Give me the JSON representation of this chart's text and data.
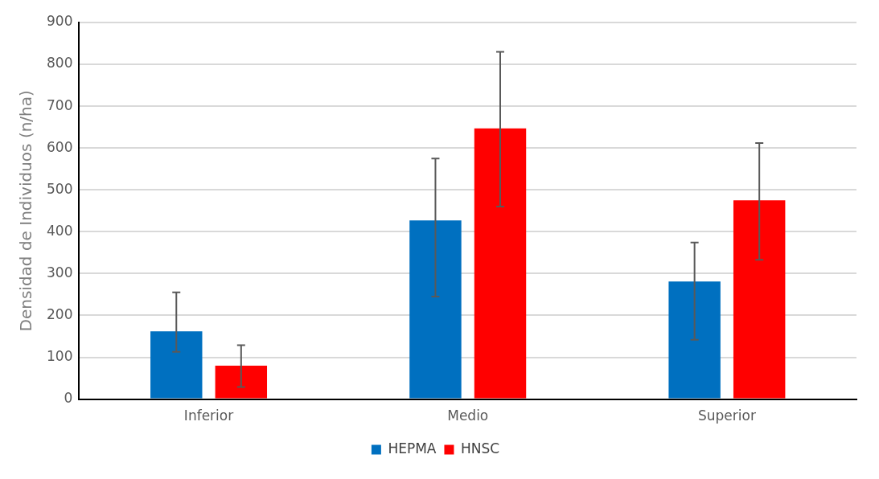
{
  "chart_data": {
    "type": "bar",
    "ylabel": "Densidad de Individuos (n/ha)",
    "categories": [
      "Inferior",
      "Medio",
      "Superior"
    ],
    "series": [
      {
        "name": "HEPMA",
        "color": "#0070c0",
        "values": [
          162,
          427,
          281
        ],
        "errors": [
          [
            113,
            255
          ],
          [
            245,
            575
          ],
          [
            142,
            374
          ]
        ]
      },
      {
        "name": "HNSC",
        "color": "#ff0000",
        "values": [
          80,
          647,
          475
        ],
        "errors": [
          [
            29,
            129
          ],
          [
            460,
            830
          ],
          [
            333,
            612
          ]
        ]
      }
    ],
    "ylim": [
      0,
      900
    ],
    "yticks": [
      0,
      100,
      200,
      300,
      400,
      500,
      600,
      700,
      800,
      900
    ],
    "grid": "y",
    "legend": "bottom"
  }
}
